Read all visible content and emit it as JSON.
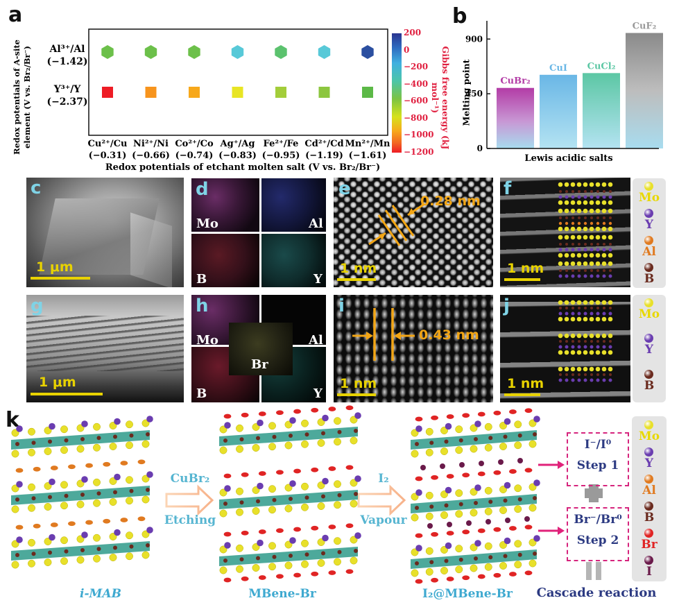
{
  "panels": {
    "a": "a",
    "b": "b",
    "c": "c",
    "d": "d",
    "e": "e",
    "f": "f",
    "g": "g",
    "h": "h",
    "i": "i",
    "j": "j",
    "k": "k"
  },
  "panel_a": {
    "rows": [
      {
        "label": "Al³⁺/Al",
        "value": "(−1.42)"
      },
      {
        "label": "Y³⁺/Y",
        "value": "(−2.37)"
      }
    ],
    "y_title_line1": "Redox potentials of A-site",
    "y_title_line2": "element (V vs. Br₂/Br⁻)",
    "columns": [
      {
        "label": "Cu²⁺/Cu",
        "value": "(−0.31)"
      },
      {
        "label": "Ni²⁺/Ni",
        "value": "(−0.66)"
      },
      {
        "label": "Co²⁺/Co",
        "value": "(−0.74)"
      },
      {
        "label": "Ag⁺/Ag",
        "value": "(−0.83)"
      },
      {
        "label": "Fe²⁺/Fe",
        "value": "(−0.95)"
      },
      {
        "label": "Cd²⁺/Cd",
        "value": "(−1.19)"
      },
      {
        "label": "Mn²⁺/Mn",
        "value": "(−1.61)"
      }
    ],
    "x_title": "Redox potentials of etchant molten salt (V vs. Br₂/Br⁻)",
    "colorbar_title": "Gibbs free energy (kJ mol⁻¹)",
    "colorbar_ticks": [
      "200",
      "0",
      "−200",
      "−400",
      "−600",
      "−800",
      "−1000",
      "−1200"
    ],
    "hex_colors": [
      "#6cc04a",
      "#6cc04a",
      "#6cc04a",
      "#58c9d8",
      "#5bc26e",
      "#58c9d8",
      "#2b4fa0"
    ],
    "sq_colors": [
      "#ee1c25",
      "#f7941d",
      "#f7a81b",
      "#e8e524",
      "#a3cd3a",
      "#8cc63f",
      "#5cb947"
    ]
  },
  "chart_data": {
    "type": "bar",
    "categories": [
      "CuBr₂",
      "CuI",
      "CuCl₂",
      "CuF₂"
    ],
    "values": [
      498,
      606,
      620,
      950
    ],
    "xlabel": "Lewis acidic salts",
    "ylabel": "Melting point",
    "ylim": [
      0,
      1050
    ],
    "yticks": [
      "0",
      "450",
      "900"
    ]
  },
  "panel_c": {
    "scale": "1 μm"
  },
  "panel_d": {
    "labels": [
      "Mo",
      "Al",
      "B",
      "Y"
    ]
  },
  "panel_e": {
    "measure": "0.28 nm",
    "scale": "1 nm"
  },
  "panel_f": {
    "scale": "1 nm",
    "legend": [
      "Mo",
      "Y",
      "Al",
      "B"
    ]
  },
  "panel_g": {
    "scale": "1 μm"
  },
  "panel_h": {
    "labels": [
      "Mo",
      "Al",
      "B",
      "Y",
      "Br"
    ]
  },
  "panel_i": {
    "measure": "0.43 nm",
    "scale": "1 nm"
  },
  "panel_j": {
    "scale": "1 nm",
    "legend": [
      "Mo",
      "Y",
      "B"
    ]
  },
  "panel_k": {
    "struct1": "i-MAB",
    "struct2": "MBene-Br",
    "struct3": "I₂@MBene-Br",
    "arrow1_top": "CuBr₂",
    "arrow1_bottom": "Etching",
    "arrow2_top": "I₂",
    "arrow2_bottom": "Vapour",
    "step1_top": "I⁻/I⁰",
    "step1_bottom": "Step 1",
    "step2_top": "Br⁻/Br⁰",
    "step2_bottom": "Step 2",
    "cascade": "Cascade reaction",
    "legend": [
      "Mo",
      "Y",
      "Al",
      "B",
      "Br",
      "I"
    ]
  },
  "colors": {
    "Mo": "#e8e02a",
    "Y": "#6a3db0",
    "Al": "#e07a20",
    "B": "#6a2a1e",
    "Br": "#e02424",
    "I": "#6a1a4a",
    "layer": "#2e9a8a"
  }
}
